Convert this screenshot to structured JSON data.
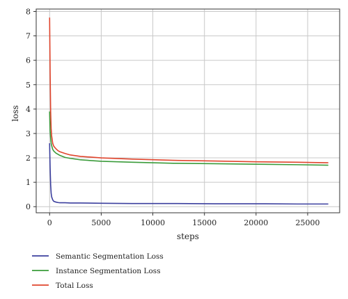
{
  "chart_data": {
    "type": "line",
    "xlabel": "steps",
    "ylabel": "loss",
    "xlim": [
      -1300,
      28100
    ],
    "ylim": [
      -0.25,
      8.1
    ],
    "xticks": [
      0,
      5000,
      10000,
      15000,
      20000,
      25000
    ],
    "yticks": [
      0,
      1,
      2,
      3,
      4,
      5,
      6,
      7,
      8
    ],
    "grid": true,
    "legend_position": "bottom",
    "series": [
      {
        "name": "Semantic Segmentation Loss",
        "color": "#3b3f9e",
        "x": [
          0,
          50,
          100,
          150,
          200,
          300,
          400,
          600,
          800,
          1000,
          1500,
          2000,
          3000,
          5000,
          8000,
          12000,
          16000,
          20000,
          24000,
          27000
        ],
        "values": [
          2.6,
          1.6,
          0.9,
          0.55,
          0.4,
          0.28,
          0.22,
          0.19,
          0.17,
          0.16,
          0.16,
          0.15,
          0.15,
          0.14,
          0.13,
          0.13,
          0.12,
          0.12,
          0.11,
          0.11
        ]
      },
      {
        "name": "Instance Segmentation Loss",
        "color": "#3a9b3a",
        "x": [
          0,
          50,
          100,
          150,
          200,
          300,
          400,
          600,
          800,
          1000,
          1500,
          2000,
          3000,
          5000,
          8000,
          12000,
          16000,
          20000,
          24000,
          27000
        ],
        "values": [
          3.9,
          3.1,
          2.8,
          2.6,
          2.5,
          2.35,
          2.28,
          2.2,
          2.15,
          2.1,
          2.02,
          1.98,
          1.92,
          1.86,
          1.82,
          1.78,
          1.76,
          1.74,
          1.72,
          1.7
        ]
      },
      {
        "name": "Total Loss",
        "color": "#e0442c",
        "x": [
          0,
          50,
          100,
          150,
          200,
          300,
          400,
          600,
          800,
          1000,
          1500,
          2000,
          3000,
          5000,
          8000,
          12000,
          16000,
          20000,
          24000,
          27000
        ],
        "values": [
          7.75,
          5.5,
          3.9,
          3.2,
          2.9,
          2.6,
          2.48,
          2.38,
          2.3,
          2.25,
          2.18,
          2.12,
          2.06,
          2.0,
          1.95,
          1.9,
          1.87,
          1.84,
          1.82,
          1.8
        ]
      }
    ]
  }
}
